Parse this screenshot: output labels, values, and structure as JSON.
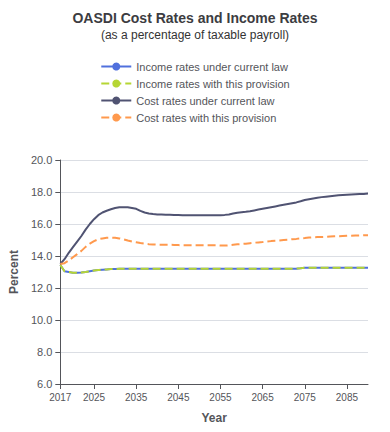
{
  "chart_data": {
    "type": "line",
    "title": "OASDI Cost Rates and Income Rates",
    "subtitle": "(as a percentage of taxable payroll)",
    "xlabel": "Year",
    "ylabel": "Percent",
    "xlim": [
      2017,
      2090
    ],
    "xticks": [
      2017,
      2025,
      2035,
      2045,
      2055,
      2065,
      2075,
      2085
    ],
    "ylim": [
      6.0,
      20.0
    ],
    "yticks": [
      {
        "value": 6.0,
        "label": "6.0"
      },
      {
        "value": 8.0,
        "label": "8.0"
      },
      {
        "value": 10.0,
        "label": "10.0"
      },
      {
        "value": 12.0,
        "label": "12.0"
      },
      {
        "value": 14.0,
        "label": "14.0"
      },
      {
        "value": 16.0,
        "label": "16.0"
      },
      {
        "value": 18.0,
        "label": "18.0"
      },
      {
        "value": 20.0,
        "label": "20.0"
      }
    ],
    "grid": true,
    "legend": "top",
    "x": [
      2017,
      2018,
      2019,
      2020,
      2021,
      2022,
      2023,
      2024,
      2025,
      2026,
      2027,
      2028,
      2029,
      2030,
      2031,
      2032,
      2033,
      2034,
      2035,
      2036,
      2037,
      2038,
      2039,
      2040,
      2041,
      2042,
      2043,
      2044,
      2045,
      2046,
      2047,
      2048,
      2049,
      2050,
      2051,
      2052,
      2053,
      2054,
      2055,
      2056,
      2057,
      2058,
      2059,
      2060,
      2061,
      2062,
      2063,
      2064,
      2065,
      2066,
      2067,
      2068,
      2069,
      2070,
      2071,
      2072,
      2073,
      2074,
      2075,
      2076,
      2077,
      2078,
      2079,
      2080,
      2081,
      2082,
      2083,
      2084,
      2085,
      2086,
      2087,
      2088,
      2089,
      2090
    ],
    "series": [
      {
        "name": "Income rates under current law",
        "line_style": "solid",
        "values": [
          13.44,
          13.05,
          13.0,
          12.96,
          12.95,
          12.97,
          13.0,
          13.05,
          13.1,
          13.12,
          13.14,
          13.16,
          13.18,
          13.19,
          13.2,
          13.2,
          13.21,
          13.21,
          13.21,
          13.21,
          13.21,
          13.21,
          13.21,
          13.21,
          13.21,
          13.21,
          13.21,
          13.21,
          13.21,
          13.21,
          13.21,
          13.21,
          13.21,
          13.21,
          13.21,
          13.21,
          13.21,
          13.21,
          13.21,
          13.21,
          13.21,
          13.21,
          13.21,
          13.21,
          13.21,
          13.21,
          13.21,
          13.21,
          13.21,
          13.21,
          13.21,
          13.21,
          13.21,
          13.21,
          13.21,
          13.21,
          13.21,
          13.23,
          13.26,
          13.27,
          13.27,
          13.27,
          13.27,
          13.27,
          13.27,
          13.27,
          13.27,
          13.27,
          13.27,
          13.27,
          13.27,
          13.27,
          13.27,
          13.27
        ]
      },
      {
        "name": "Income rates with this provision",
        "line_style": "dashed",
        "values": [
          13.44,
          13.05,
          13.0,
          12.96,
          12.95,
          12.97,
          13.0,
          13.05,
          13.1,
          13.12,
          13.14,
          13.16,
          13.18,
          13.19,
          13.2,
          13.2,
          13.21,
          13.21,
          13.21,
          13.21,
          13.21,
          13.21,
          13.21,
          13.21,
          13.21,
          13.21,
          13.21,
          13.21,
          13.21,
          13.21,
          13.21,
          13.21,
          13.21,
          13.21,
          13.21,
          13.21,
          13.21,
          13.21,
          13.21,
          13.21,
          13.21,
          13.21,
          13.21,
          13.21,
          13.21,
          13.21,
          13.21,
          13.21,
          13.21,
          13.21,
          13.21,
          13.21,
          13.21,
          13.21,
          13.21,
          13.21,
          13.21,
          13.23,
          13.26,
          13.27,
          13.27,
          13.27,
          13.27,
          13.27,
          13.27,
          13.27,
          13.27,
          13.27,
          13.27,
          13.27,
          13.27,
          13.27,
          13.27,
          13.27
        ]
      },
      {
        "name": "Cost rates under current law",
        "line_style": "solid",
        "values": [
          13.5,
          13.8,
          14.2,
          14.55,
          14.9,
          15.25,
          15.65,
          16.0,
          16.3,
          16.55,
          16.72,
          16.83,
          16.92,
          17.0,
          17.05,
          17.05,
          17.04,
          17.0,
          16.95,
          16.82,
          16.72,
          16.66,
          16.62,
          16.6,
          16.59,
          16.58,
          16.58,
          16.57,
          16.56,
          16.55,
          16.55,
          16.55,
          16.55,
          16.55,
          16.55,
          16.55,
          16.55,
          16.55,
          16.55,
          16.57,
          16.6,
          16.65,
          16.7,
          16.73,
          16.76,
          16.8,
          16.85,
          16.9,
          16.95,
          17.0,
          17.05,
          17.1,
          17.15,
          17.2,
          17.25,
          17.3,
          17.35,
          17.42,
          17.5,
          17.55,
          17.6,
          17.64,
          17.68,
          17.71,
          17.74,
          17.77,
          17.79,
          17.81,
          17.83,
          17.85,
          17.86,
          17.87,
          17.88,
          17.9
        ]
      },
      {
        "name": "Cost rates with this provision",
        "line_style": "dashed",
        "values": [
          13.5,
          13.55,
          13.72,
          13.92,
          14.12,
          14.32,
          14.57,
          14.77,
          14.93,
          15.05,
          15.1,
          15.14,
          15.15,
          15.14,
          15.1,
          15.04,
          14.97,
          14.91,
          14.86,
          14.81,
          14.77,
          14.74,
          14.72,
          14.71,
          14.71,
          14.7,
          14.7,
          14.69,
          14.68,
          14.67,
          14.67,
          14.67,
          14.67,
          14.67,
          14.67,
          14.67,
          14.67,
          14.67,
          14.65,
          14.65,
          14.67,
          14.7,
          14.73,
          14.75,
          14.77,
          14.8,
          14.83,
          14.85,
          14.87,
          14.9,
          14.93,
          14.95,
          14.97,
          15.0,
          15.02,
          15.05,
          15.07,
          15.1,
          15.12,
          15.15,
          15.17,
          15.18,
          15.19,
          15.2,
          15.22,
          15.23,
          15.24,
          15.25,
          15.26,
          15.27,
          15.28,
          15.29,
          15.3,
          15.3
        ]
      }
    ]
  }
}
